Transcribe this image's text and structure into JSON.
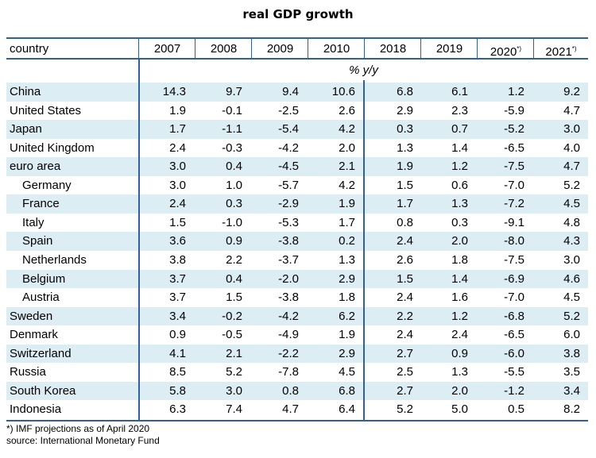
{
  "chart_data": {
    "type": "table",
    "title": "real GDP growth",
    "unit": "% y/y",
    "columns": [
      {
        "label": "country",
        "sup": ""
      },
      {
        "label": "2007",
        "sup": ""
      },
      {
        "label": "2008",
        "sup": ""
      },
      {
        "label": "2009",
        "sup": ""
      },
      {
        "label": "2010",
        "sup": ""
      },
      {
        "label": "2018",
        "sup": ""
      },
      {
        "label": "2019",
        "sup": ""
      },
      {
        "label": "2020",
        "sup": "*)"
      },
      {
        "label": "2021",
        "sup": "*)"
      }
    ],
    "rows": [
      {
        "country": "China",
        "indent": false,
        "values": [
          "14.3",
          "9.7",
          "9.4",
          "10.6",
          "6.8",
          "6.1",
          "1.2",
          "9.2"
        ]
      },
      {
        "country": "United States",
        "indent": false,
        "values": [
          "1.9",
          "-0.1",
          "-2.5",
          "2.6",
          "2.9",
          "2.3",
          "-5.9",
          "4.7"
        ]
      },
      {
        "country": "Japan",
        "indent": false,
        "values": [
          "1.7",
          "-1.1",
          "-5.4",
          "4.2",
          "0.3",
          "0.7",
          "-5.2",
          "3.0"
        ]
      },
      {
        "country": "United Kingdom",
        "indent": false,
        "values": [
          "2.4",
          "-0.3",
          "-4.2",
          "2.0",
          "1.3",
          "1.4",
          "-6.5",
          "4.0"
        ]
      },
      {
        "country": "euro area",
        "indent": false,
        "values": [
          "3.0",
          "0.4",
          "-4.5",
          "2.1",
          "1.9",
          "1.2",
          "-7.5",
          "4.7"
        ]
      },
      {
        "country": "Germany",
        "indent": true,
        "values": [
          "3.0",
          "1.0",
          "-5.7",
          "4.2",
          "1.5",
          "0.6",
          "-7.0",
          "5.2"
        ]
      },
      {
        "country": "France",
        "indent": true,
        "values": [
          "2.4",
          "0.3",
          "-2.9",
          "1.9",
          "1.7",
          "1.3",
          "-7.2",
          "4.5"
        ]
      },
      {
        "country": "Italy",
        "indent": true,
        "values": [
          "1.5",
          "-1.0",
          "-5.3",
          "1.7",
          "0.8",
          "0.3",
          "-9.1",
          "4.8"
        ]
      },
      {
        "country": "Spain",
        "indent": true,
        "values": [
          "3.6",
          "0.9",
          "-3.8",
          "0.2",
          "2.4",
          "2.0",
          "-8.0",
          "4.3"
        ]
      },
      {
        "country": "Netherlands",
        "indent": true,
        "values": [
          "3.8",
          "2.2",
          "-3.7",
          "1.3",
          "2.6",
          "1.8",
          "-7.5",
          "3.0"
        ]
      },
      {
        "country": "Belgium",
        "indent": true,
        "values": [
          "3.7",
          "0.4",
          "-2.0",
          "2.9",
          "1.5",
          "1.4",
          "-6.9",
          "4.6"
        ]
      },
      {
        "country": "Austria",
        "indent": true,
        "values": [
          "3.7",
          "1.5",
          "-3.8",
          "1.8",
          "2.4",
          "1.6",
          "-7.0",
          "4.5"
        ]
      },
      {
        "country": "Sweden",
        "indent": false,
        "values": [
          "3.4",
          "-0.2",
          "-4.2",
          "6.2",
          "2.2",
          "1.2",
          "-6.8",
          "5.2"
        ]
      },
      {
        "country": "Denmark",
        "indent": false,
        "values": [
          "0.9",
          "-0.5",
          "-4.9",
          "1.9",
          "2.4",
          "2.4",
          "-6.5",
          "6.0"
        ]
      },
      {
        "country": "Switzerland",
        "indent": false,
        "values": [
          "4.1",
          "2.1",
          "-2.2",
          "2.9",
          "2.7",
          "0.9",
          "-6.0",
          "3.8"
        ]
      },
      {
        "country": "Russia",
        "indent": false,
        "values": [
          "8.5",
          "5.2",
          "-7.8",
          "4.5",
          "2.5",
          "1.3",
          "-5.5",
          "3.5"
        ]
      },
      {
        "country": "South Korea",
        "indent": false,
        "values": [
          "5.8",
          "3.0",
          "0.8",
          "6.8",
          "2.7",
          "2.0",
          "-1.2",
          "3.4"
        ]
      },
      {
        "country": "Indonesia",
        "indent": false,
        "values": [
          "6.3",
          "7.4",
          "4.7",
          "6.4",
          "5.2",
          "5.0",
          "0.5",
          "8.2"
        ]
      }
    ],
    "footnotes": [
      "*) IMF projections as of April 2020",
      "source: International Monetary Fund"
    ],
    "colors": {
      "rule": "#2f5f9e",
      "shade": "#ddedf4"
    }
  }
}
